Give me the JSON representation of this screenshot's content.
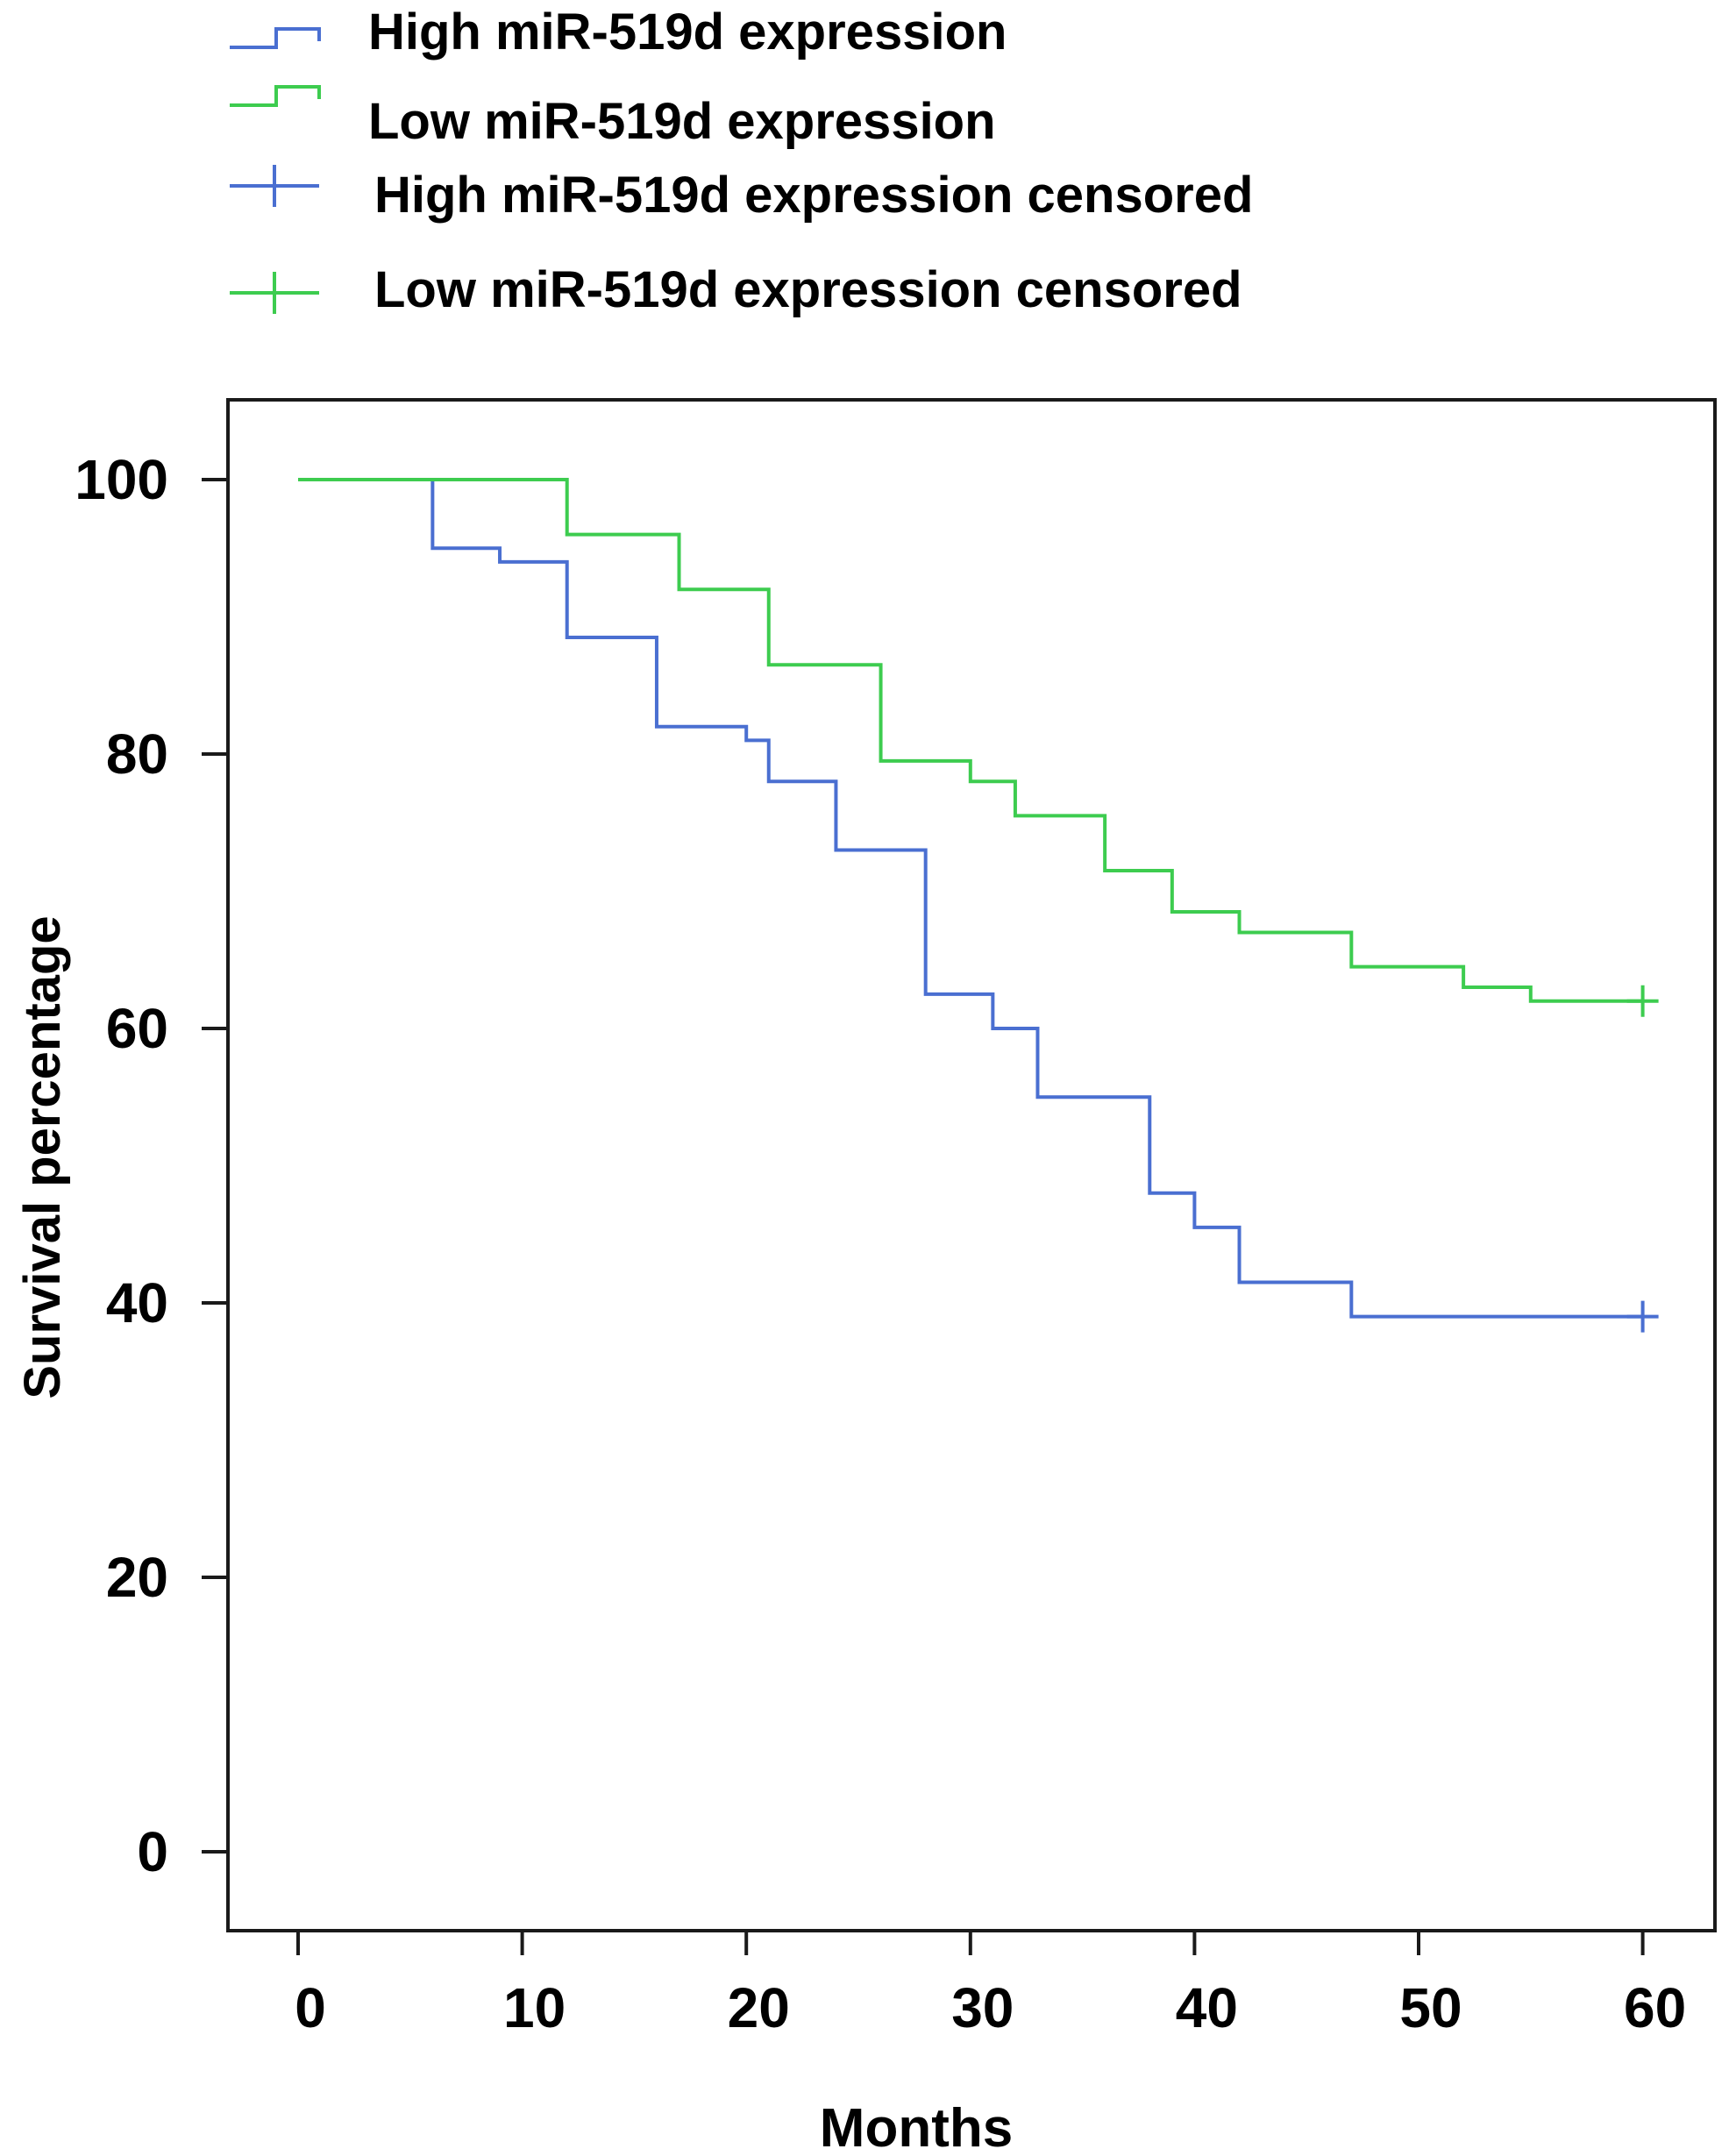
{
  "chart_data": {
    "type": "line",
    "subtype": "kaplan-meier",
    "xlabel": "Months",
    "ylabel": "Survival percentage",
    "xlim": [
      -3,
      63
    ],
    "ylim": [
      -5,
      106
    ],
    "xticks": [
      0,
      10,
      20,
      30,
      40,
      50,
      60
    ],
    "yticks": [
      0,
      20,
      40,
      60,
      80,
      100
    ],
    "legend_placement": "top-left",
    "legend": [
      {
        "label": "High miR-519d  expression",
        "marker": "step",
        "series": "high"
      },
      {
        "label": "Low miR-519d  expression",
        "marker": "step",
        "series": "low"
      },
      {
        "label": "High miR-519d  expression  censored",
        "marker": "plus",
        "series": "high"
      },
      {
        "label": "Low miR-519d  expression  censored",
        "marker": "plus",
        "series": "low"
      }
    ],
    "series": [
      {
        "id": "high",
        "color": "#4a6fd1",
        "steps": [
          [
            0,
            100
          ],
          [
            6,
            95
          ],
          [
            9,
            94
          ],
          [
            12,
            88.5
          ],
          [
            16,
            82
          ],
          [
            20,
            81
          ],
          [
            21,
            78
          ],
          [
            24,
            73
          ],
          [
            28,
            62.5
          ],
          [
            31,
            60
          ],
          [
            33,
            55
          ],
          [
            38,
            48
          ],
          [
            40,
            45.5
          ],
          [
            42,
            41.5
          ],
          [
            47,
            39
          ],
          [
            60,
            39
          ]
        ],
        "censored": [
          [
            60,
            39
          ]
        ]
      },
      {
        "id": "low",
        "color": "#3dcc4f",
        "steps": [
          [
            0,
            100
          ],
          [
            12,
            96
          ],
          [
            17,
            92
          ],
          [
            21,
            86.5
          ],
          [
            26,
            79.5
          ],
          [
            30,
            78
          ],
          [
            32,
            75.5
          ],
          [
            36,
            71.5
          ],
          [
            39,
            68.5
          ],
          [
            42,
            67
          ],
          [
            47,
            64.5
          ],
          [
            52,
            63
          ],
          [
            55,
            62
          ],
          [
            60,
            62
          ]
        ],
        "censored": [
          [
            60,
            62
          ]
        ]
      }
    ]
  }
}
